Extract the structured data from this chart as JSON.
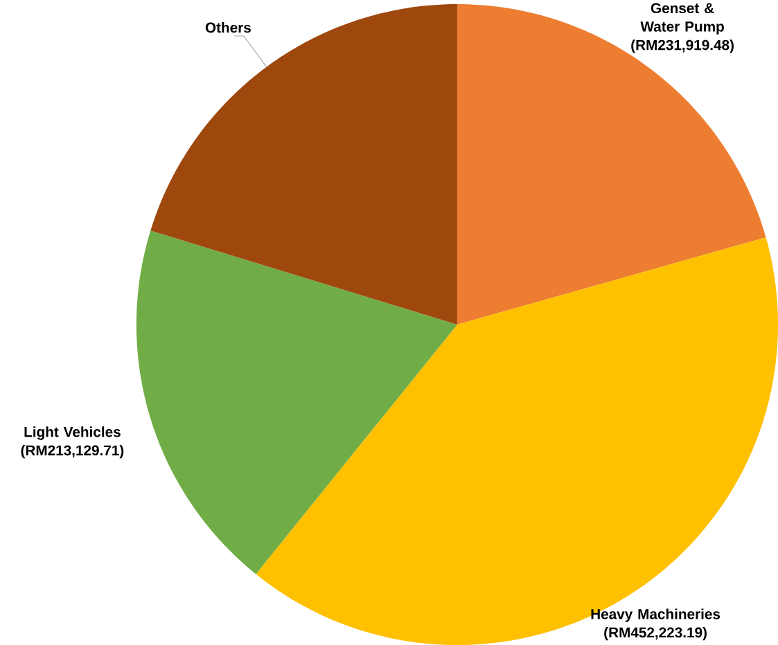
{
  "chart_data": {
    "type": "pie",
    "categories": [
      "Genset & Water Pump",
      "Heavy Machineries",
      "Light Vehicles",
      "Others"
    ],
    "values": [
      231919.48,
      452223.19,
      213129.71,
      228000
    ],
    "value_labels": [
      "(RM231,919.48)",
      "(RM452,223.19)",
      "(RM213,129.71)",
      null
    ],
    "colors": [
      "#ed7d31",
      "#ffc000",
      "#70ad47",
      "#9e480e"
    ]
  }
}
